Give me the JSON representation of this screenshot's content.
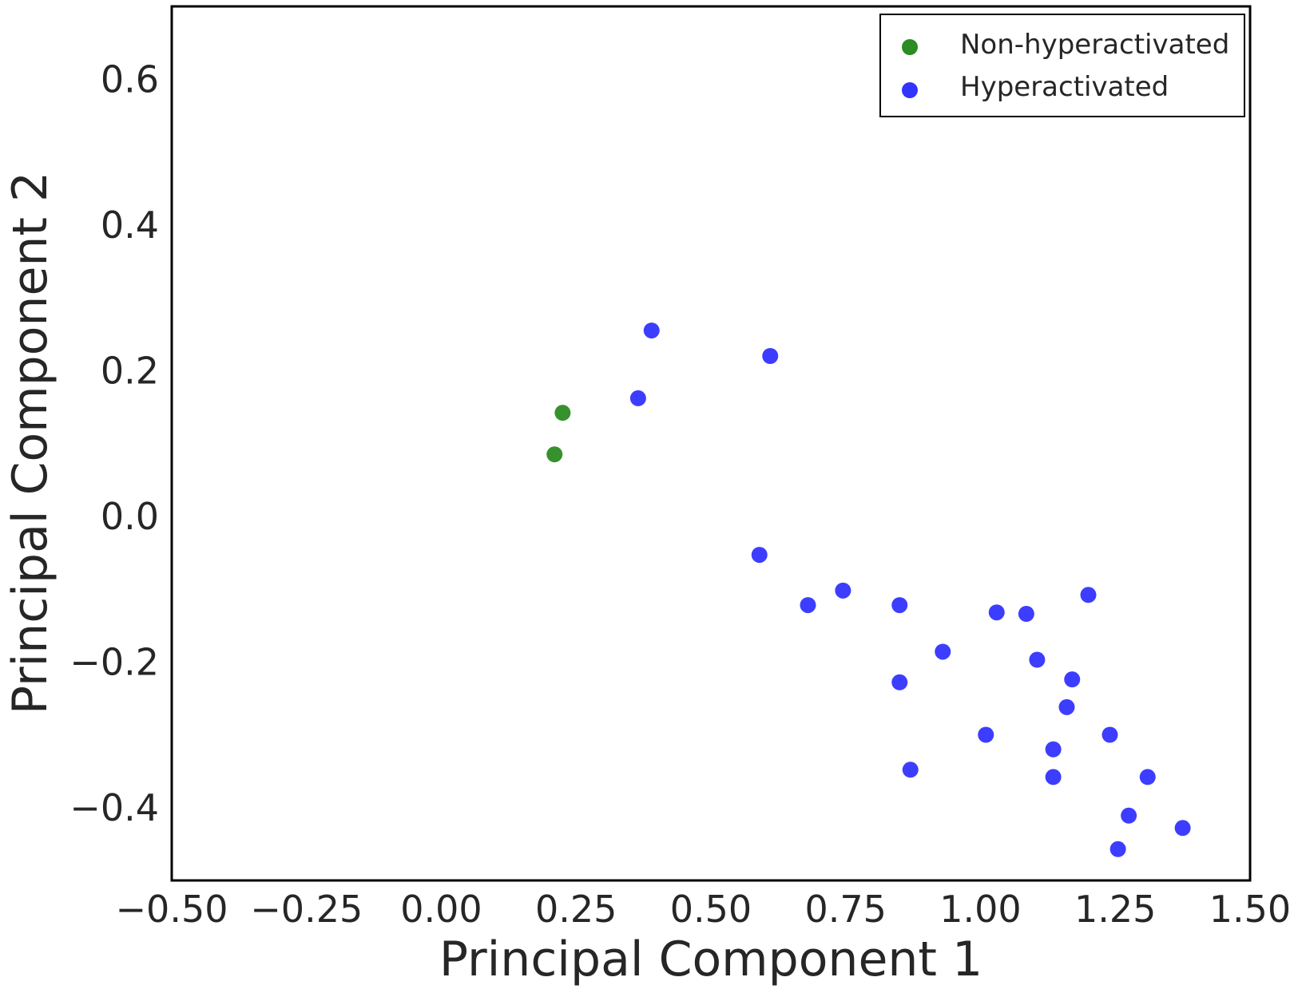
{
  "chart_data": {
    "type": "scatter",
    "title": "",
    "xlabel": "Principal Component 1",
    "ylabel": "Principal Component 2",
    "xlim": [
      -0.5,
      1.5
    ],
    "ylim": [
      -0.5,
      0.7
    ],
    "xticks": [
      -0.5,
      -0.25,
      0.0,
      0.25,
      0.5,
      0.75,
      1.0,
      1.25,
      1.5
    ],
    "xtick_labels": [
      "−0.50",
      "−0.25",
      "0.00",
      "0.25",
      "0.50",
      "0.75",
      "1.00",
      "1.25",
      "1.50"
    ],
    "yticks": [
      -0.4,
      -0.2,
      0.0,
      0.2,
      0.4,
      0.6
    ],
    "ytick_labels": [
      "−0.4",
      "−0.2",
      "0.0",
      "0.2",
      "0.4",
      "0.6"
    ],
    "grid": false,
    "legend_position": "top-right",
    "series": [
      {
        "name": "Non-hyperactivated",
        "color": "#2a8c22",
        "points": [
          [
            0.225,
            0.142
          ],
          [
            0.21,
            0.085
          ]
        ]
      },
      {
        "name": "Hyperactivated",
        "color": "#3333ff",
        "points": [
          [
            0.39,
            0.255
          ],
          [
            0.61,
            0.22
          ],
          [
            0.365,
            0.162
          ],
          [
            0.59,
            -0.053
          ],
          [
            0.68,
            -0.122
          ],
          [
            0.745,
            -0.102
          ],
          [
            0.85,
            -0.122
          ],
          [
            1.03,
            -0.132
          ],
          [
            1.085,
            -0.134
          ],
          [
            1.2,
            -0.108
          ],
          [
            0.93,
            -0.186
          ],
          [
            1.105,
            -0.197
          ],
          [
            1.17,
            -0.224
          ],
          [
            0.85,
            -0.228
          ],
          [
            1.16,
            -0.262
          ],
          [
            1.01,
            -0.3
          ],
          [
            1.24,
            -0.3
          ],
          [
            1.135,
            -0.32
          ],
          [
            0.87,
            -0.348
          ],
          [
            1.135,
            -0.358
          ],
          [
            1.31,
            -0.358
          ],
          [
            1.275,
            -0.411
          ],
          [
            1.375,
            -0.428
          ],
          [
            1.255,
            -0.457
          ]
        ]
      }
    ]
  }
}
